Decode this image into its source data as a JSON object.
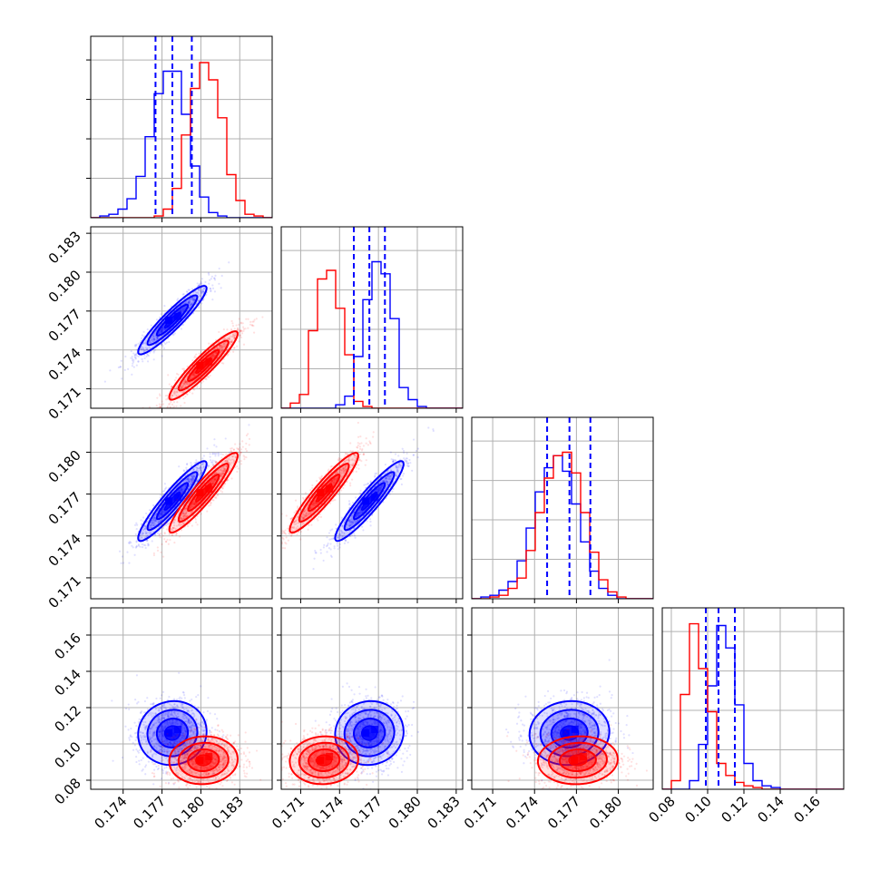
{
  "colors": {
    "series_a": "#0000ff",
    "series_b": "#ff0000",
    "grid": "#b0b0b0",
    "frame": "#000000"
  },
  "chart_data": {
    "type": "corner",
    "grid": true,
    "n_params": 4,
    "axis_ranges": [
      [
        0.1715,
        0.1855
      ],
      [
        0.1695,
        0.1835
      ],
      [
        0.1695,
        0.1825
      ],
      [
        0.075,
        0.175
      ]
    ],
    "ticks": [
      {
        "values": [
          0.174,
          0.177,
          0.18,
          0.183
        ],
        "labels": [
          "0.174",
          "0.177",
          "0.180",
          "0.183"
        ]
      },
      {
        "values": [
          0.171,
          0.174,
          0.177,
          0.18,
          0.183
        ],
        "labels": [
          "0.171",
          "0.174",
          "0.177",
          "0.180",
          "0.183"
        ]
      },
      {
        "values": [
          0.171,
          0.174,
          0.177,
          0.18
        ],
        "labels": [
          "0.171",
          "0.174",
          "0.177",
          "0.180"
        ]
      },
      {
        "values": [
          0.08,
          0.1,
          0.12,
          0.14,
          0.16
        ],
        "labels": [
          "0.08",
          "0.10",
          "0.12",
          "0.14",
          "0.16"
        ]
      }
    ],
    "quantiles": [
      [
        0.1765,
        0.1778,
        0.1793
      ],
      [
        0.1751,
        0.1763,
        0.1775
      ],
      [
        0.1749,
        0.1765,
        0.178
      ],
      [
        0.099,
        0.106,
        0.115
      ]
    ],
    "series": [
      {
        "color": "#0000ff",
        "means": [
          0.1778,
          0.1763,
          0.1765,
          0.106
        ],
        "sigmas": [
          0.0012,
          0.0012,
          0.0013,
          0.008
        ],
        "histograms": [
          {
            "edges": [
              0.1715,
              0.1722,
              0.1729,
              0.1736,
              0.1743,
              0.175,
              0.1757,
              0.1764,
              0.1771,
              0.1778,
              0.1785,
              0.1792,
              0.1799,
              0.1806,
              0.1813,
              0.182,
              0.1827,
              0.1834,
              0.1841,
              0.1848,
              0.1855
            ],
            "counts": [
              0.0,
              0.01,
              0.02,
              0.05,
              0.11,
              0.24,
              0.47,
              0.72,
              0.85,
              0.85,
              0.6,
              0.3,
              0.12,
              0.03,
              0.01,
              0.0,
              0.0,
              0.0,
              0.0,
              0.0
            ]
          },
          {
            "edges": [
              0.1695,
              0.1702,
              0.1709,
              0.1716,
              0.1723,
              0.173,
              0.1737,
              0.1744,
              0.1751,
              0.1758,
              0.1765,
              0.1772,
              0.1779,
              0.1786,
              0.1793,
              0.18,
              0.1807,
              0.1814,
              0.1821,
              0.1828,
              0.1835
            ],
            "counts": [
              0.0,
              0.0,
              0.0,
              0.0,
              0.0,
              0.0,
              0.02,
              0.07,
              0.3,
              0.63,
              0.85,
              0.78,
              0.52,
              0.12,
              0.05,
              0.01,
              0.0,
              0.0,
              0.0,
              0.0
            ]
          },
          {
            "edges": [
              0.1695,
              0.17015,
              0.1708,
              0.17145,
              0.1721,
              0.17275,
              0.1734,
              0.17405,
              0.1747,
              0.17535,
              0.176,
              0.17665,
              0.1773,
              0.17795,
              0.1786,
              0.17925,
              0.1799,
              0.18055,
              0.1812,
              0.18185,
              0.1825
            ],
            "counts": [
              0.0,
              0.01,
              0.02,
              0.05,
              0.1,
              0.22,
              0.41,
              0.62,
              0.76,
              0.83,
              0.74,
              0.55,
              0.33,
              0.16,
              0.06,
              0.02,
              0.0,
              0.0,
              0.0,
              0.0
            ]
          },
          {
            "edges": [
              0.075,
              0.08,
              0.085,
              0.09,
              0.095,
              0.1,
              0.105,
              0.11,
              0.115,
              0.12,
              0.125,
              0.13,
              0.135,
              0.14,
              0.145,
              0.15,
              0.155,
              0.16,
              0.165,
              0.17,
              0.175
            ],
            "counts": [
              0.0,
              0.0,
              0.0,
              0.05,
              0.26,
              0.6,
              0.95,
              0.82,
              0.49,
              0.15,
              0.05,
              0.02,
              0.01,
              0.0,
              0.0,
              0.0,
              0.0,
              0.0,
              0.0,
              0.0
            ]
          }
        ],
        "pairs": [
          {
            "i": 1,
            "j": 0,
            "center": [
              0.1778,
              0.1763
            ],
            "major_half": 0.0034,
            "minor_half": 0.00045,
            "angle": 43
          },
          {
            "i": 2,
            "j": 0,
            "center": [
              0.1778,
              0.1765
            ],
            "major_half": 0.0034,
            "minor_half": 0.0007,
            "angle": 40
          },
          {
            "i": 2,
            "j": 1,
            "center": [
              0.1763,
              0.1765
            ],
            "major_half": 0.0033,
            "minor_half": 0.0006,
            "angle": 43
          },
          {
            "i": 3,
            "j": 0,
            "center": [
              0.1778,
              0.106
            ],
            "major_half": 0.0024,
            "minor_half": 0.0,
            "angle": 0,
            "aspect": 0.016
          },
          {
            "i": 3,
            "j": 1,
            "center": [
              0.1763,
              0.106
            ],
            "major_half": 0.0024,
            "minor_half": 0.0,
            "angle": 0,
            "aspect": 0.016
          },
          {
            "i": 3,
            "j": 2,
            "center": [
              0.1765,
              0.106
            ],
            "major_half": 0.0026,
            "minor_half": 0.0,
            "angle": 0,
            "aspect": 0.016
          }
        ]
      },
      {
        "color": "#ff0000",
        "means": [
          0.1802,
          0.1728,
          0.1771,
          0.091
        ],
        "sigmas": [
          0.0012,
          0.0012,
          0.0013,
          0.006
        ],
        "histograms": [
          {
            "edges": [
              0.1715,
              0.1722,
              0.1729,
              0.1736,
              0.1743,
              0.175,
              0.1757,
              0.1764,
              0.1771,
              0.1778,
              0.1785,
              0.1792,
              0.1799,
              0.1806,
              0.1813,
              0.182,
              0.1827,
              0.1834,
              0.1841,
              0.1848,
              0.1855
            ],
            "counts": [
              0.0,
              0.0,
              0.0,
              0.0,
              0.0,
              0.0,
              0.0,
              0.01,
              0.05,
              0.17,
              0.48,
              0.75,
              0.9,
              0.8,
              0.58,
              0.25,
              0.1,
              0.02,
              0.01,
              0.0
            ]
          },
          {
            "edges": [
              0.1695,
              0.1702,
              0.1709,
              0.1716,
              0.1723,
              0.173,
              0.1737,
              0.1744,
              0.1751,
              0.1758,
              0.1765,
              0.1772,
              0.1779,
              0.1786,
              0.1793,
              0.18,
              0.1807,
              0.1814,
              0.1821,
              0.1828,
              0.1835
            ],
            "counts": [
              0.0,
              0.03,
              0.08,
              0.45,
              0.75,
              0.8,
              0.58,
              0.31,
              0.04,
              0.01,
              0.0,
              0.0,
              0.0,
              0.0,
              0.0,
              0.0,
              0.0,
              0.0,
              0.0,
              0.0
            ]
          },
          {
            "edges": [
              0.1695,
              0.17015,
              0.1708,
              0.17145,
              0.1721,
              0.17275,
              0.1734,
              0.17405,
              0.1747,
              0.17535,
              0.176,
              0.17665,
              0.1773,
              0.17795,
              0.1786,
              0.17925,
              0.1799,
              0.18055,
              0.1812,
              0.18185,
              0.1825
            ],
            "counts": [
              0.0,
              0.0,
              0.01,
              0.02,
              0.06,
              0.12,
              0.28,
              0.5,
              0.7,
              0.83,
              0.85,
              0.73,
              0.5,
              0.27,
              0.11,
              0.04,
              0.01,
              0.0,
              0.0,
              0.0
            ]
          },
          {
            "edges": [
              0.075,
              0.08,
              0.085,
              0.09,
              0.095,
              0.1,
              0.105,
              0.11,
              0.115,
              0.12,
              0.125,
              0.13,
              0.135,
              0.14,
              0.145,
              0.15,
              0.155,
              0.16,
              0.165,
              0.17,
              0.175
            ],
            "counts": [
              0.0,
              0.05,
              0.55,
              0.96,
              0.7,
              0.45,
              0.15,
              0.08,
              0.04,
              0.02,
              0.01,
              0.0,
              0.0,
              0.0,
              0.0,
              0.0,
              0.0,
              0.0,
              0.0,
              0.0
            ]
          }
        ],
        "pairs": [
          {
            "i": 1,
            "j": 0,
            "center": [
              0.1802,
              0.1728
            ],
            "major_half": 0.0034,
            "minor_half": 0.00045,
            "angle": 43
          },
          {
            "i": 2,
            "j": 0,
            "center": [
              0.1802,
              0.1771
            ],
            "major_half": 0.0034,
            "minor_half": 0.0007,
            "angle": 40
          },
          {
            "i": 2,
            "j": 1,
            "center": [
              0.1728,
              0.1771
            ],
            "major_half": 0.0033,
            "minor_half": 0.0006,
            "angle": 43
          },
          {
            "i": 3,
            "j": 0,
            "center": [
              0.1802,
              0.091
            ],
            "major_half": 0.0024,
            "minor_half": 0.0,
            "angle": 0,
            "aspect": 0.016
          },
          {
            "i": 3,
            "j": 1,
            "center": [
              0.1728,
              0.091
            ],
            "major_half": 0.0024,
            "minor_half": 0.0,
            "angle": 0,
            "aspect": 0.016
          },
          {
            "i": 3,
            "j": 2,
            "center": [
              0.1771,
              0.091
            ],
            "major_half": 0.0026,
            "minor_half": 0.0,
            "angle": 0,
            "aspect": 0.016
          }
        ]
      }
    ]
  }
}
